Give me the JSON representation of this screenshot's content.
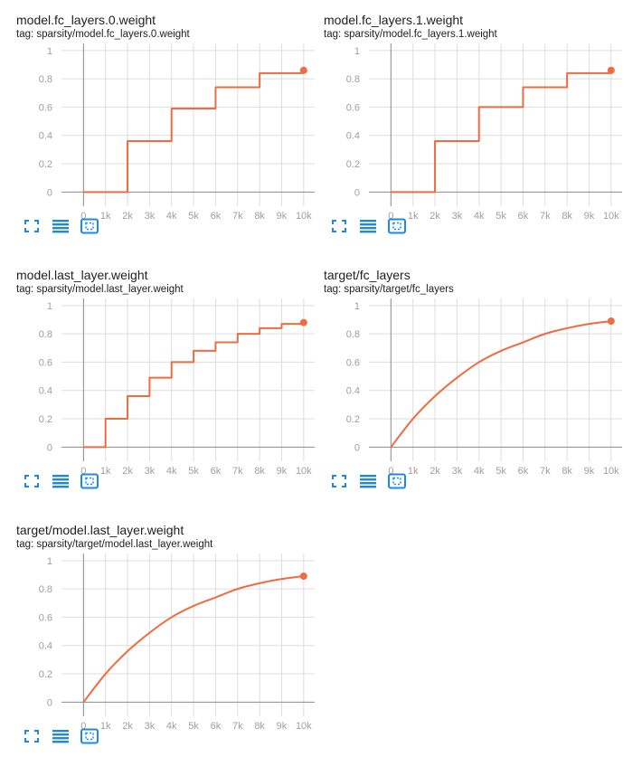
{
  "colors": {
    "series": "#f06b3f",
    "grid": "#dddddd",
    "axis": "#8f8f8f",
    "tick": "#9e9e9e",
    "icon": "#1e88e5"
  },
  "toolbar_icons": [
    "fullscreen-icon",
    "toggle-log-scale-icon",
    "fit-domain-icon"
  ],
  "charts": [
    {
      "title": "model.fc_layers.0.weight",
      "tag": "tag: sparsity/model.fc_layers.0.weight"
    },
    {
      "title": "model.fc_layers.1.weight",
      "tag": "tag: sparsity/model.fc_layers.1.weight"
    },
    {
      "title": "model.last_layer.weight",
      "tag": "tag: sparsity/model.last_layer.weight"
    },
    {
      "title": "target/fc_layers",
      "tag": "tag: sparsity/target/fc_layers"
    },
    {
      "title": "target/model.last_layer.weight",
      "tag": "tag: sparsity/target/model.last_layer.weight"
    }
  ],
  "chart_data": [
    {
      "type": "line",
      "shape": "step",
      "title": "model.fc_layers.0.weight",
      "xlim": [
        -1000,
        10500
      ],
      "ylim": [
        -0.1,
        1.05
      ],
      "xticks": [
        0,
        1000,
        2000,
        3000,
        4000,
        5000,
        6000,
        7000,
        8000,
        9000,
        10000
      ],
      "xtick_labels": [
        "0",
        "1k",
        "2k",
        "3k",
        "4k",
        "5k",
        "6k",
        "7k",
        "8k",
        "9k",
        "10k"
      ],
      "yticks": [
        0,
        0.2,
        0.4,
        0.6,
        0.8,
        1
      ],
      "ytick_labels": [
        "0",
        "0.2",
        "0.4",
        "0.6",
        "0.8",
        "1"
      ],
      "grid": true,
      "x": [
        0,
        2000,
        4000,
        6000,
        8000,
        10000
      ],
      "y": [
        0,
        0.36,
        0.59,
        0.74,
        0.84,
        0.86
      ]
    },
    {
      "type": "line",
      "shape": "step",
      "title": "model.fc_layers.1.weight",
      "xlim": [
        -1000,
        10500
      ],
      "ylim": [
        -0.1,
        1.05
      ],
      "xticks": [
        0,
        1000,
        2000,
        3000,
        4000,
        5000,
        6000,
        7000,
        8000,
        9000,
        10000
      ],
      "xtick_labels": [
        "0",
        "1k",
        "2k",
        "3k",
        "4k",
        "5k",
        "6k",
        "7k",
        "8k",
        "9k",
        "10k"
      ],
      "yticks": [
        0,
        0.2,
        0.4,
        0.6,
        0.8,
        1
      ],
      "ytick_labels": [
        "0",
        "0.2",
        "0.4",
        "0.6",
        "0.8",
        "1"
      ],
      "grid": true,
      "x": [
        0,
        2000,
        4000,
        6000,
        8000,
        10000
      ],
      "y": [
        0,
        0.36,
        0.6,
        0.74,
        0.84,
        0.86
      ]
    },
    {
      "type": "line",
      "shape": "step",
      "title": "model.last_layer.weight",
      "xlim": [
        -1000,
        10500
      ],
      "ylim": [
        -0.1,
        1.05
      ],
      "xticks": [
        0,
        1000,
        2000,
        3000,
        4000,
        5000,
        6000,
        7000,
        8000,
        9000,
        10000
      ],
      "xtick_labels": [
        "0",
        "1k",
        "2k",
        "3k",
        "4k",
        "5k",
        "6k",
        "7k",
        "8k",
        "9k",
        "10k"
      ],
      "yticks": [
        0,
        0.2,
        0.4,
        0.6,
        0.8,
        1
      ],
      "ytick_labels": [
        "0",
        "0.2",
        "0.4",
        "0.6",
        "0.8",
        "1"
      ],
      "grid": true,
      "x": [
        0,
        1000,
        2000,
        3000,
        4000,
        5000,
        6000,
        7000,
        8000,
        9000,
        10000
      ],
      "y": [
        0,
        0.2,
        0.36,
        0.49,
        0.6,
        0.68,
        0.74,
        0.8,
        0.84,
        0.87,
        0.88
      ]
    },
    {
      "type": "line",
      "shape": "curve",
      "title": "target/fc_layers",
      "xlim": [
        -1000,
        10500
      ],
      "ylim": [
        -0.1,
        1.05
      ],
      "xticks": [
        0,
        1000,
        2000,
        3000,
        4000,
        5000,
        6000,
        7000,
        8000,
        9000,
        10000
      ],
      "xtick_labels": [
        "0",
        "1k",
        "2k",
        "3k",
        "4k",
        "5k",
        "6k",
        "7k",
        "8k",
        "9k",
        "10k"
      ],
      "yticks": [
        0,
        0.2,
        0.4,
        0.6,
        0.8,
        1
      ],
      "ytick_labels": [
        "0",
        "0.2",
        "0.4",
        "0.6",
        "0.8",
        "1"
      ],
      "grid": true,
      "x": [
        0,
        1000,
        2000,
        3000,
        4000,
        5000,
        6000,
        7000,
        8000,
        9000,
        10000
      ],
      "y": [
        0,
        0.2,
        0.36,
        0.49,
        0.6,
        0.68,
        0.74,
        0.8,
        0.84,
        0.87,
        0.89
      ]
    },
    {
      "type": "line",
      "shape": "curve",
      "title": "target/model.last_layer.weight",
      "xlim": [
        -1000,
        10500
      ],
      "ylim": [
        -0.1,
        1.05
      ],
      "xticks": [
        0,
        1000,
        2000,
        3000,
        4000,
        5000,
        6000,
        7000,
        8000,
        9000,
        10000
      ],
      "xtick_labels": [
        "0",
        "1k",
        "2k",
        "3k",
        "4k",
        "5k",
        "6k",
        "7k",
        "8k",
        "9k",
        "10k"
      ],
      "yticks": [
        0,
        0.2,
        0.4,
        0.6,
        0.8,
        1
      ],
      "ytick_labels": [
        "0",
        "0.2",
        "0.4",
        "0.6",
        "0.8",
        "1"
      ],
      "grid": true,
      "x": [
        0,
        1000,
        2000,
        3000,
        4000,
        5000,
        6000,
        7000,
        8000,
        9000,
        10000
      ],
      "y": [
        0,
        0.2,
        0.36,
        0.49,
        0.6,
        0.68,
        0.74,
        0.8,
        0.84,
        0.87,
        0.89
      ]
    }
  ]
}
